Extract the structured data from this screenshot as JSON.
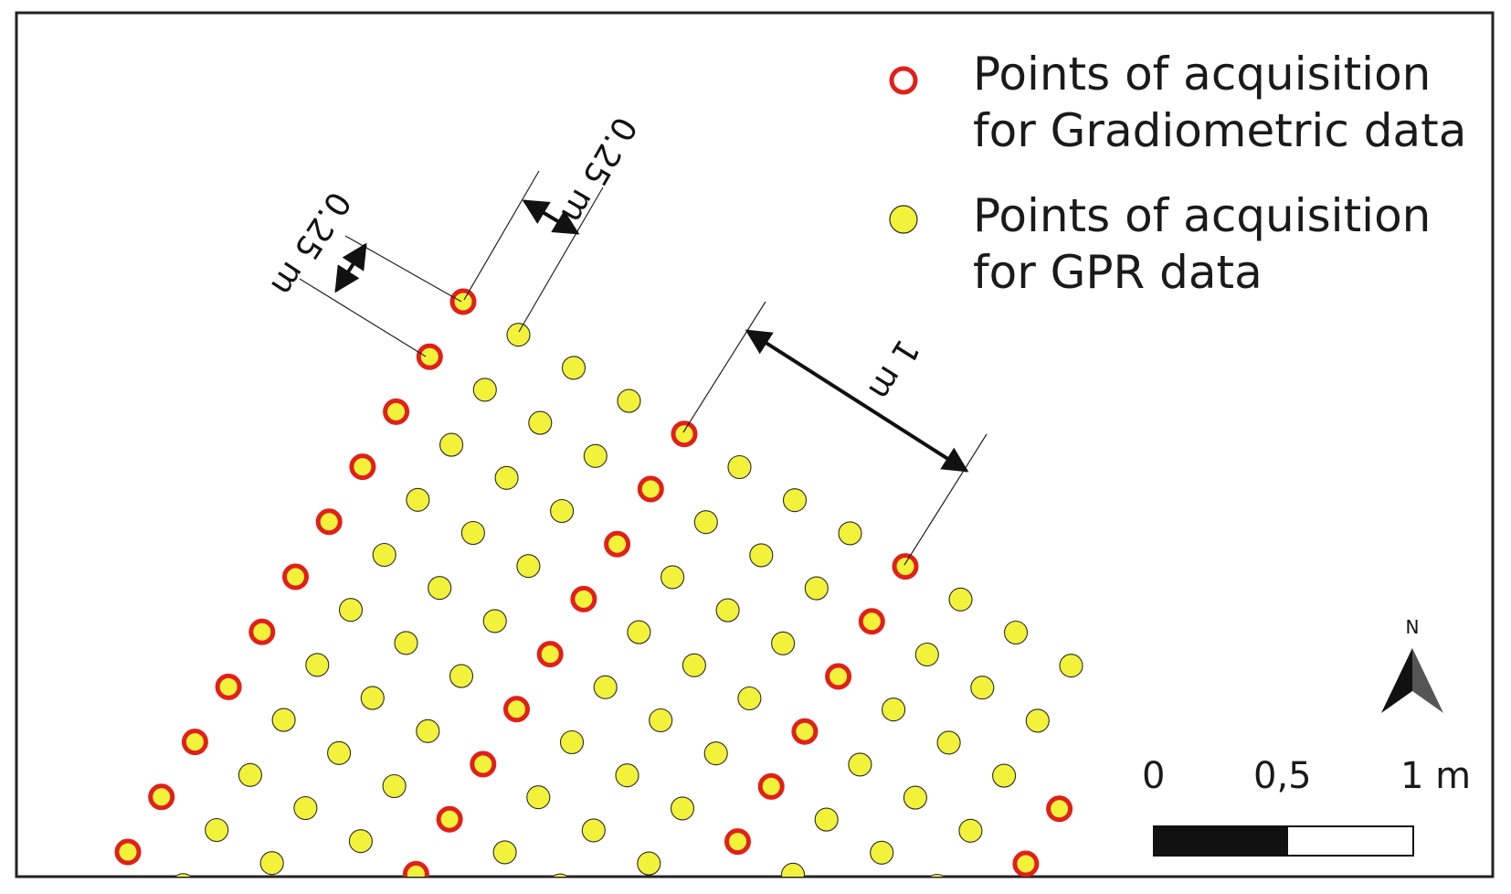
{
  "legend": {
    "gradiometric": {
      "line1": "Points of acquisition",
      "line2": "for Gradiometric data",
      "marker": "open-circle",
      "stroke_color": "#e0201a",
      "fill_color": "#f2f23a"
    },
    "gpr": {
      "line1": "Points of acquisition",
      "line2": "for GPR data",
      "marker": "filled-circle",
      "fill_color": "#f2f23a",
      "stroke_color": "#2a2a2a"
    }
  },
  "dimensions": {
    "spacing_left": "0.25 m",
    "spacing_top": "0.25 m",
    "line_spacing": "1 m"
  },
  "scale_bar": {
    "labels": [
      "0",
      "0,5",
      "1 m"
    ]
  },
  "north_arrow": {
    "label": "N",
    "icon": "north-arrow-icon"
  },
  "colors": {
    "frame": "#222222",
    "background": "#ffffff",
    "gradiometric_outline": "#e0201a",
    "point_fill": "#f2f23a"
  }
}
